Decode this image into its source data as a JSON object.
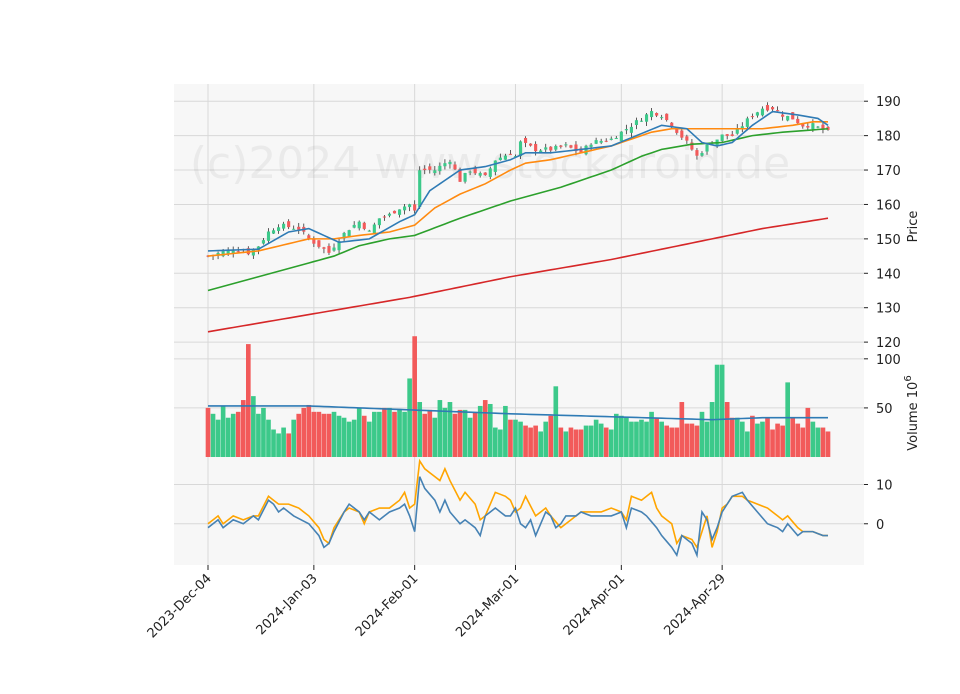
{
  "watermark": "(c)2024 www.stockdroid.de",
  "colors": {
    "up": "#3cc98a",
    "down": "#f25a5a",
    "ma_short": "#2f7bb5",
    "ma_mid": "#ff8a10",
    "ma_long": "#2ca02c",
    "ma_200": "#d62728",
    "vol_ma": "#2f7bb5",
    "osc_fast": "#4682b4",
    "osc_slow": "#ffa500",
    "panel_bg": "#f7f7f7",
    "grid": "#d8d8d8"
  },
  "chart_data": {
    "type": "candlestick",
    "x_ticks": [
      "2023-Dec-04",
      "2024-Jan-03",
      "2024-Feb-01",
      "2024-Mar-01",
      "2024-Apr-01",
      "2024-Apr-29"
    ],
    "x_tick_index": [
      0,
      21,
      41,
      61,
      82,
      102
    ],
    "n_bars": 124,
    "price": {
      "ylabel": "Price",
      "ylim": [
        118,
        195
      ],
      "yticks": [
        120,
        130,
        140,
        150,
        160,
        170,
        180,
        190
      ],
      "close_anchors": [
        [
          0,
          145
        ],
        [
          5,
          147
        ],
        [
          8,
          146
        ],
        [
          10,
          148
        ],
        [
          12,
          152
        ],
        [
          14,
          154
        ],
        [
          18,
          153
        ],
        [
          20,
          150
        ],
        [
          22,
          148
        ],
        [
          24,
          146
        ],
        [
          26,
          150
        ],
        [
          28,
          153
        ],
        [
          30,
          155
        ],
        [
          32,
          152
        ],
        [
          34,
          156
        ],
        [
          36,
          157
        ],
        [
          38,
          159
        ],
        [
          40,
          160
        ],
        [
          41,
          158
        ],
        [
          42,
          170
        ],
        [
          45,
          170
        ],
        [
          48,
          173
        ],
        [
          50,
          167
        ],
        [
          52,
          170
        ],
        [
          55,
          168
        ],
        [
          57,
          173
        ],
        [
          60,
          175
        ],
        [
          61,
          174
        ],
        [
          62,
          178
        ],
        [
          65,
          176
        ],
        [
          68,
          176
        ],
        [
          71,
          177
        ],
        [
          74,
          175
        ],
        [
          76,
          178
        ],
        [
          80,
          179
        ],
        [
          82,
          181
        ],
        [
          85,
          184
        ],
        [
          88,
          187
        ],
        [
          90,
          186
        ],
        [
          92,
          183
        ],
        [
          95,
          178
        ],
        [
          97,
          174
        ],
        [
          99,
          177
        ],
        [
          102,
          180
        ],
        [
          104,
          180
        ],
        [
          106,
          183
        ],
        [
          108,
          186
        ],
        [
          110,
          188
        ],
        [
          112,
          188
        ],
        [
          114,
          186
        ],
        [
          116,
          185
        ],
        [
          118,
          183
        ],
        [
          120,
          183
        ],
        [
          123,
          181
        ]
      ],
      "ma_short": [
        [
          0,
          146.5
        ],
        [
          10,
          147
        ],
        [
          16,
          152
        ],
        [
          20,
          153
        ],
        [
          23,
          151
        ],
        [
          26,
          149
        ],
        [
          32,
          150
        ],
        [
          38,
          155
        ],
        [
          41,
          157
        ],
        [
          44,
          164
        ],
        [
          50,
          170
        ],
        [
          55,
          171
        ],
        [
          60,
          173
        ],
        [
          63,
          175
        ],
        [
          68,
          175
        ],
        [
          74,
          176
        ],
        [
          80,
          177
        ],
        [
          85,
          180
        ],
        [
          90,
          183
        ],
        [
          95,
          182
        ],
        [
          98,
          178
        ],
        [
          101,
          177
        ],
        [
          104,
          178
        ],
        [
          108,
          183
        ],
        [
          112,
          187
        ],
        [
          117,
          186
        ],
        [
          121,
          185
        ],
        [
          123,
          183
        ]
      ],
      "ma_mid": [
        [
          0,
          145
        ],
        [
          10,
          146.5
        ],
        [
          20,
          150
        ],
        [
          25,
          150
        ],
        [
          30,
          151
        ],
        [
          36,
          152
        ],
        [
          41,
          154
        ],
        [
          45,
          159
        ],
        [
          50,
          163
        ],
        [
          55,
          166
        ],
        [
          60,
          170
        ],
        [
          63,
          172
        ],
        [
          68,
          173
        ],
        [
          74,
          175
        ],
        [
          80,
          177
        ],
        [
          84,
          179
        ],
        [
          88,
          181
        ],
        [
          92,
          182
        ],
        [
          96,
          182
        ],
        [
          100,
          182
        ],
        [
          104,
          182
        ],
        [
          110,
          182
        ],
        [
          116,
          183
        ],
        [
          120,
          184
        ],
        [
          123,
          184
        ]
      ],
      "ma_long": [
        [
          0,
          135
        ],
        [
          10,
          139
        ],
        [
          20,
          143
        ],
        [
          25,
          145
        ],
        [
          30,
          148
        ],
        [
          36,
          150
        ],
        [
          41,
          151
        ],
        [
          50,
          156
        ],
        [
          60,
          161
        ],
        [
          70,
          165
        ],
        [
          80,
          170
        ],
        [
          86,
          174
        ],
        [
          90,
          176
        ],
        [
          96,
          177.5
        ],
        [
          102,
          178
        ],
        [
          108,
          180
        ],
        [
          114,
          181
        ],
        [
          123,
          182
        ]
      ],
      "ma_200": [
        [
          0,
          123
        ],
        [
          20,
          128
        ],
        [
          40,
          133
        ],
        [
          60,
          139
        ],
        [
          80,
          144
        ],
        [
          100,
          150
        ],
        [
          110,
          153
        ],
        [
          123,
          156
        ]
      ]
    },
    "volume": {
      "ylabel": "Volume  10^6",
      "ylim": [
        0,
        110
      ],
      "yticks": [
        50,
        100
      ],
      "bars": [
        50,
        44,
        38,
        52,
        40,
        44,
        46,
        58,
        115,
        62,
        44,
        50,
        38,
        28,
        24,
        30,
        24,
        38,
        44,
        50,
        53,
        46,
        46,
        44,
        44,
        46,
        42,
        40,
        36,
        38,
        50,
        42,
        36,
        46,
        46,
        50,
        50,
        46,
        48,
        46,
        80,
        123,
        56,
        44,
        48,
        40,
        58,
        50,
        56,
        44,
        48,
        48,
        40,
        46,
        52,
        58,
        54,
        30,
        28,
        52,
        38,
        38,
        36,
        32,
        30,
        32,
        26,
        36,
        42,
        72,
        30,
        26,
        30,
        28,
        28,
        32,
        32,
        38,
        34,
        30,
        28,
        44,
        42,
        40,
        36,
        36,
        38,
        36,
        46,
        40,
        36,
        32,
        30,
        30,
        56,
        34,
        34,
        32,
        46,
        36,
        56,
        94,
        94,
        56,
        40,
        40,
        36,
        26,
        42,
        34,
        36,
        40,
        28,
        34,
        32,
        76,
        40,
        34,
        30,
        50,
        36,
        30,
        30,
        26
      ],
      "ma": [
        [
          0,
          52
        ],
        [
          20,
          52
        ],
        [
          40,
          48
        ],
        [
          60,
          44
        ],
        [
          80,
          41
        ],
        [
          100,
          38
        ],
        [
          110,
          40
        ],
        [
          123,
          40
        ]
      ]
    },
    "oscillator": {
      "ylim": [
        -10.5,
        17
      ],
      "yticks": [
        0,
        10
      ],
      "fast": [
        [
          0,
          -1
        ],
        [
          2,
          1
        ],
        [
          3,
          -1
        ],
        [
          5,
          1
        ],
        [
          7,
          0
        ],
        [
          9,
          2
        ],
        [
          10,
          1
        ],
        [
          12,
          6
        ],
        [
          13,
          5
        ],
        [
          14,
          3
        ],
        [
          15,
          4
        ],
        [
          17,
          2
        ],
        [
          20,
          0
        ],
        [
          22,
          -3
        ],
        [
          23,
          -6
        ],
        [
          24,
          -5
        ],
        [
          25,
          -2
        ],
        [
          27,
          3
        ],
        [
          28,
          5
        ],
        [
          30,
          3
        ],
        [
          31,
          1
        ],
        [
          32,
          3
        ],
        [
          34,
          1
        ],
        [
          36,
          3
        ],
        [
          38,
          4
        ],
        [
          39,
          5
        ],
        [
          40,
          2
        ],
        [
          41,
          -2
        ],
        [
          42,
          12
        ],
        [
          43,
          9
        ],
        [
          45,
          6
        ],
        [
          46,
          3
        ],
        [
          47,
          6
        ],
        [
          48,
          3
        ],
        [
          50,
          0
        ],
        [
          51,
          1
        ],
        [
          53,
          -1
        ],
        [
          54,
          -3
        ],
        [
          55,
          2
        ],
        [
          57,
          4
        ],
        [
          59,
          2
        ],
        [
          60,
          2
        ],
        [
          61,
          4
        ],
        [
          62,
          0
        ],
        [
          63,
          -1
        ],
        [
          64,
          1
        ],
        [
          65,
          -3
        ],
        [
          67,
          3
        ],
        [
          68,
          2
        ],
        [
          69,
          -1
        ],
        [
          70,
          0
        ],
        [
          71,
          2
        ],
        [
          73,
          2
        ],
        [
          74,
          3
        ],
        [
          76,
          2
        ],
        [
          78,
          2
        ],
        [
          80,
          2
        ],
        [
          82,
          3
        ],
        [
          83,
          -1
        ],
        [
          84,
          4
        ],
        [
          86,
          3
        ],
        [
          87,
          2
        ],
        [
          89,
          -1
        ],
        [
          90,
          -3
        ],
        [
          92,
          -6
        ],
        [
          93,
          -8
        ],
        [
          94,
          -3
        ],
        [
          96,
          -5
        ],
        [
          97,
          -8
        ],
        [
          98,
          3
        ],
        [
          99,
          1
        ],
        [
          100,
          -4
        ],
        [
          101,
          -1
        ],
        [
          102,
          3
        ],
        [
          103,
          5
        ],
        [
          104,
          7
        ],
        [
          106,
          8
        ],
        [
          107,
          6
        ],
        [
          109,
          3
        ],
        [
          111,
          0
        ],
        [
          113,
          -1
        ],
        [
          114,
          -2
        ],
        [
          115,
          0
        ],
        [
          117,
          -3
        ],
        [
          118,
          -2
        ],
        [
          120,
          -2
        ],
        [
          122,
          -3
        ],
        [
          123,
          -3
        ]
      ],
      "slow": [
        [
          0,
          0
        ],
        [
          2,
          2
        ],
        [
          3,
          0
        ],
        [
          5,
          2
        ],
        [
          7,
          1
        ],
        [
          9,
          2
        ],
        [
          10,
          2
        ],
        [
          12,
          7
        ],
        [
          13,
          6
        ],
        [
          14,
          5
        ],
        [
          16,
          5
        ],
        [
          18,
          4
        ],
        [
          20,
          2
        ],
        [
          22,
          -1
        ],
        [
          23,
          -4
        ],
        [
          24,
          -5
        ],
        [
          25,
          -1
        ],
        [
          27,
          3
        ],
        [
          28,
          4
        ],
        [
          30,
          3
        ],
        [
          31,
          0
        ],
        [
          32,
          3
        ],
        [
          34,
          4
        ],
        [
          36,
          4
        ],
        [
          38,
          6
        ],
        [
          39,
          8
        ],
        [
          40,
          4
        ],
        [
          41,
          5
        ],
        [
          42,
          16
        ],
        [
          43,
          14
        ],
        [
          45,
          12
        ],
        [
          46,
          11
        ],
        [
          47,
          14
        ],
        [
          48,
          11
        ],
        [
          50,
          6
        ],
        [
          51,
          8
        ],
        [
          53,
          5
        ],
        [
          54,
          1
        ],
        [
          55,
          2
        ],
        [
          57,
          8
        ],
        [
          59,
          7
        ],
        [
          60,
          6
        ],
        [
          61,
          3
        ],
        [
          62,
          4
        ],
        [
          63,
          7
        ],
        [
          65,
          2
        ],
        [
          67,
          4
        ],
        [
          68,
          2
        ],
        [
          70,
          -1
        ],
        [
          71,
          0
        ],
        [
          73,
          2
        ],
        [
          74,
          3
        ],
        [
          76,
          3
        ],
        [
          78,
          3
        ],
        [
          80,
          4
        ],
        [
          82,
          3
        ],
        [
          83,
          1
        ],
        [
          84,
          7
        ],
        [
          86,
          6
        ],
        [
          87,
          7
        ],
        [
          88,
          8
        ],
        [
          89,
          4
        ],
        [
          90,
          2
        ],
        [
          92,
          0
        ],
        [
          93,
          -5
        ],
        [
          94,
          -3
        ],
        [
          96,
          -4
        ],
        [
          97,
          -6
        ],
        [
          98,
          -2
        ],
        [
          99,
          2
        ],
        [
          100,
          -6
        ],
        [
          101,
          -2
        ],
        [
          102,
          4
        ],
        [
          103,
          5
        ],
        [
          104,
          7
        ],
        [
          106,
          7
        ],
        [
          107,
          6
        ],
        [
          109,
          5
        ],
        [
          111,
          4
        ],
        [
          113,
          2
        ],
        [
          114,
          1
        ],
        [
          115,
          2
        ],
        [
          117,
          -1
        ],
        [
          118,
          -2
        ],
        [
          120,
          -2
        ],
        [
          122,
          -3
        ],
        [
          123,
          -3
        ]
      ]
    }
  }
}
